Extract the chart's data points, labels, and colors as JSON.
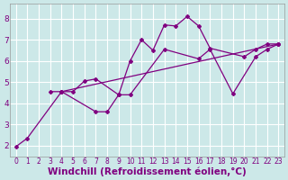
{
  "background_color": "#cce8e8",
  "line_color": "#800080",
  "grid_color": "#ffffff",
  "xlabel": "Windchill (Refroidissement éolien,°C)",
  "xlabel_color": "#800080",
  "xlabel_fontsize": 7.5,
  "xtick_fontsize": 5.5,
  "ytick_fontsize": 6.5,
  "xlim_min": -0.5,
  "xlim_max": 23.5,
  "ylim_min": 1.5,
  "ylim_max": 8.7,
  "yticks": [
    2,
    3,
    4,
    5,
    6,
    7,
    8
  ],
  "xticks": [
    0,
    1,
    2,
    3,
    4,
    5,
    6,
    7,
    8,
    9,
    10,
    11,
    12,
    13,
    14,
    15,
    16,
    17,
    18,
    19,
    20,
    21,
    22,
    23
  ],
  "series": [
    {
      "x": [
        0,
        1,
        4,
        23
      ],
      "y": [
        1.95,
        2.35,
        4.55,
        6.8
      ]
    },
    {
      "x": [
        4,
        7,
        8,
        9,
        10,
        11,
        12,
        13,
        14,
        15,
        16,
        17,
        20,
        21,
        22,
        23
      ],
      "y": [
        4.55,
        3.6,
        3.6,
        4.4,
        6.0,
        7.0,
        6.5,
        7.7,
        7.65,
        8.1,
        7.65,
        6.6,
        6.2,
        6.55,
        6.8,
        6.8
      ]
    },
    {
      "x": [
        3,
        4,
        5,
        6,
        7,
        9,
        10,
        13,
        16,
        17,
        19,
        21,
        22,
        23
      ],
      "y": [
        4.55,
        4.55,
        4.55,
        5.05,
        5.15,
        4.4,
        4.4,
        6.55,
        6.1,
        6.55,
        4.45,
        6.2,
        6.55,
        6.8
      ]
    }
  ]
}
